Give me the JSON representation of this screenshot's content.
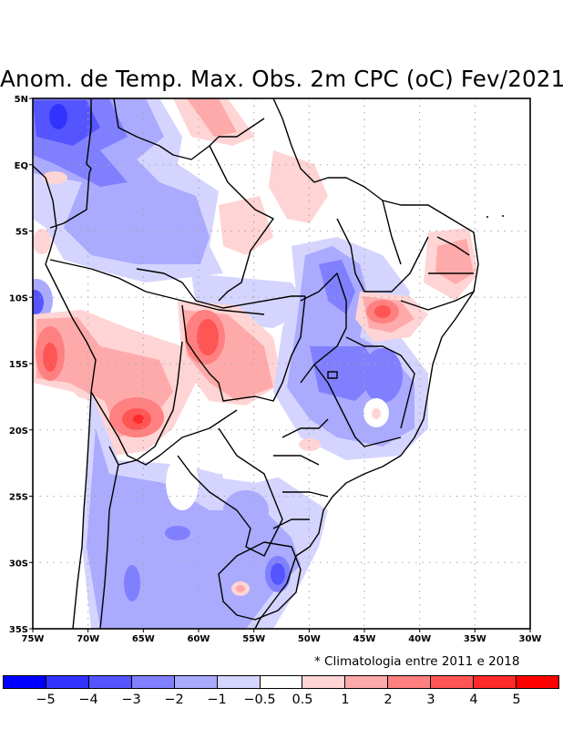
{
  "title": "Anom. de Temp. Max. Obs. 2m CPC (oC) Fev/2021",
  "footnote": "* Climatologia entre 2011 e 2018",
  "map": {
    "region": "South America (Brazil)",
    "lon_range": [
      -75,
      -30
    ],
    "lat_range": [
      -35,
      5
    ],
    "x_ticks": [
      {
        "lon": -75,
        "label": "75W"
      },
      {
        "lon": -70,
        "label": "70W"
      },
      {
        "lon": -65,
        "label": "65W"
      },
      {
        "lon": -60,
        "label": "60W"
      },
      {
        "lon": -55,
        "label": "55W"
      },
      {
        "lon": -50,
        "label": "50W"
      },
      {
        "lon": -45,
        "label": "45W"
      },
      {
        "lon": -40,
        "label": "40W"
      },
      {
        "lon": -35,
        "label": "35W"
      },
      {
        "lon": -30,
        "label": "30W"
      }
    ],
    "y_ticks": [
      {
        "lat": 5,
        "label": "5N"
      },
      {
        "lat": 0,
        "label": "EQ"
      },
      {
        "lat": -5,
        "label": "5S"
      },
      {
        "lat": -10,
        "label": "10S"
      },
      {
        "lat": -15,
        "label": "15S"
      },
      {
        "lat": -20,
        "label": "20S"
      },
      {
        "lat": -25,
        "label": "25S"
      },
      {
        "lat": -30,
        "label": "30S"
      },
      {
        "lat": -35,
        "label": "35S"
      }
    ],
    "grid": "dotted"
  },
  "colorbar": {
    "colors": [
      "#0000ff",
      "#3333ff",
      "#5555ff",
      "#8080ff",
      "#aaaaff",
      "#d4d4ff",
      "#ffffff",
      "#ffd4d4",
      "#ffaaaa",
      "#ff8080",
      "#ff5555",
      "#ff2a2a",
      "#ff0000"
    ],
    "labels": [
      "−5",
      "−4",
      "−3",
      "−2",
      "−1",
      "−0.5",
      "0.5",
      "1",
      "2",
      "3",
      "4",
      "5"
    ]
  }
}
